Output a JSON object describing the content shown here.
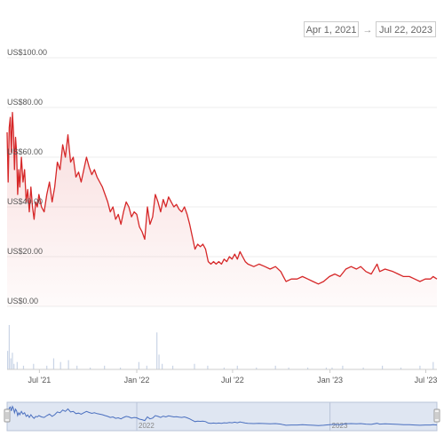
{
  "range_selector": {
    "from": "Apr 1, 2021",
    "arrow": "→",
    "to": "Jul 22, 2023"
  },
  "chart_data": {
    "type": "area",
    "x_start": "2021-05-01",
    "x_end": "2023-07-22",
    "ylim": [
      0,
      100
    ],
    "y_ticks": [
      {
        "value": 100,
        "label": "US$100.00"
      },
      {
        "value": 80,
        "label": "US$80.00"
      },
      {
        "value": 60,
        "label": "US$60.00"
      },
      {
        "value": 40,
        "label": "US$40.00"
      },
      {
        "value": 20,
        "label": "US$20.00"
      },
      {
        "value": 0,
        "label": "US$0.00"
      }
    ],
    "x_ticks": [
      {
        "date": "2021-07-01",
        "label": "Jul '21"
      },
      {
        "date": "2022-01-01",
        "label": "Jan '22"
      },
      {
        "date": "2022-07-01",
        "label": "Jul '22"
      },
      {
        "date": "2023-01-01",
        "label": "Jan '23"
      },
      {
        "date": "2023-07-01",
        "label": "Jul '23"
      }
    ],
    "navigator_ticks": [
      {
        "date": "2022-01-01",
        "label": "2022"
      },
      {
        "date": "2023-01-01",
        "label": "2023"
      }
    ],
    "series": [
      {
        "color": "#d62728",
        "points": [
          [
            "2021-05-01",
            70
          ],
          [
            "2021-05-03",
            50
          ],
          [
            "2021-05-05",
            72
          ],
          [
            "2021-05-07",
            76
          ],
          [
            "2021-05-09",
            62
          ],
          [
            "2021-05-11",
            78
          ],
          [
            "2021-05-13",
            70
          ],
          [
            "2021-05-15",
            55
          ],
          [
            "2021-05-17",
            68
          ],
          [
            "2021-05-19",
            62
          ],
          [
            "2021-05-21",
            45
          ],
          [
            "2021-05-23",
            55
          ],
          [
            "2021-05-25",
            48
          ],
          [
            "2021-05-28",
            60
          ],
          [
            "2021-05-31",
            50
          ],
          [
            "2021-06-03",
            55
          ],
          [
            "2021-06-06",
            42
          ],
          [
            "2021-06-09",
            47
          ],
          [
            "2021-06-12",
            38
          ],
          [
            "2021-06-15",
            48
          ],
          [
            "2021-06-18",
            40
          ],
          [
            "2021-06-21",
            35
          ],
          [
            "2021-06-24",
            42
          ],
          [
            "2021-06-27",
            40
          ],
          [
            "2021-06-30",
            45
          ],
          [
            "2021-07-05",
            40
          ],
          [
            "2021-07-10",
            38
          ],
          [
            "2021-07-15",
            45
          ],
          [
            "2021-07-20",
            50
          ],
          [
            "2021-07-25",
            42
          ],
          [
            "2021-07-30",
            48
          ],
          [
            "2021-08-04",
            58
          ],
          [
            "2021-08-09",
            55
          ],
          [
            "2021-08-14",
            65
          ],
          [
            "2021-08-19",
            60
          ],
          [
            "2021-08-24",
            69
          ],
          [
            "2021-08-29",
            58
          ],
          [
            "2021-09-03",
            60
          ],
          [
            "2021-09-08",
            52
          ],
          [
            "2021-09-13",
            54
          ],
          [
            "2021-09-18",
            50
          ],
          [
            "2021-09-23",
            55
          ],
          [
            "2021-09-28",
            60
          ],
          [
            "2021-10-03",
            56
          ],
          [
            "2021-10-08",
            53
          ],
          [
            "2021-10-13",
            55
          ],
          [
            "2021-10-18",
            52
          ],
          [
            "2021-10-23",
            50
          ],
          [
            "2021-10-28",
            48
          ],
          [
            "2021-11-02",
            45
          ],
          [
            "2021-11-07",
            42
          ],
          [
            "2021-11-12",
            38
          ],
          [
            "2021-11-17",
            40
          ],
          [
            "2021-11-22",
            35
          ],
          [
            "2021-11-27",
            37
          ],
          [
            "2021-12-02",
            33
          ],
          [
            "2021-12-07",
            38
          ],
          [
            "2021-12-12",
            42
          ],
          [
            "2021-12-17",
            40
          ],
          [
            "2021-12-22",
            36
          ],
          [
            "2021-12-27",
            38
          ],
          [
            "2022-01-01",
            37
          ],
          [
            "2022-01-06",
            32
          ],
          [
            "2022-01-11",
            30
          ],
          [
            "2022-01-16",
            27
          ],
          [
            "2022-01-21",
            40
          ],
          [
            "2022-01-26",
            33
          ],
          [
            "2022-01-31",
            36
          ],
          [
            "2022-02-05",
            45
          ],
          [
            "2022-02-10",
            42
          ],
          [
            "2022-02-15",
            38
          ],
          [
            "2022-02-20",
            43
          ],
          [
            "2022-02-25",
            40
          ],
          [
            "2022-03-02",
            44
          ],
          [
            "2022-03-07",
            42
          ],
          [
            "2022-03-12",
            40
          ],
          [
            "2022-03-17",
            41
          ],
          [
            "2022-03-22",
            39
          ],
          [
            "2022-03-27",
            38
          ],
          [
            "2022-04-01",
            40
          ],
          [
            "2022-04-06",
            37
          ],
          [
            "2022-04-11",
            33
          ],
          [
            "2022-04-16",
            28
          ],
          [
            "2022-04-21",
            23
          ],
          [
            "2022-04-26",
            25
          ],
          [
            "2022-05-01",
            24
          ],
          [
            "2022-05-06",
            25
          ],
          [
            "2022-05-11",
            23
          ],
          [
            "2022-05-16",
            18
          ],
          [
            "2022-05-21",
            17
          ],
          [
            "2022-05-26",
            18
          ],
          [
            "2022-05-31",
            17
          ],
          [
            "2022-06-05",
            18
          ],
          [
            "2022-06-10",
            17
          ],
          [
            "2022-06-15",
            19
          ],
          [
            "2022-06-20",
            18
          ],
          [
            "2022-06-25",
            20
          ],
          [
            "2022-06-30",
            19
          ],
          [
            "2022-07-05",
            21
          ],
          [
            "2022-07-10",
            19
          ],
          [
            "2022-07-15",
            22
          ],
          [
            "2022-07-20",
            20
          ],
          [
            "2022-07-25",
            18
          ],
          [
            "2022-07-30",
            17
          ],
          [
            "2022-08-10",
            16
          ],
          [
            "2022-08-20",
            17
          ],
          [
            "2022-08-31",
            16
          ],
          [
            "2022-09-10",
            15
          ],
          [
            "2022-09-20",
            16
          ],
          [
            "2022-09-30",
            14
          ],
          [
            "2022-10-05",
            12
          ],
          [
            "2022-10-10",
            10
          ],
          [
            "2022-10-20",
            11
          ],
          [
            "2022-10-31",
            11
          ],
          [
            "2022-11-10",
            12
          ],
          [
            "2022-11-20",
            11
          ],
          [
            "2022-11-30",
            10
          ],
          [
            "2022-12-10",
            9
          ],
          [
            "2022-12-20",
            10
          ],
          [
            "2022-12-31",
            12
          ],
          [
            "2023-01-10",
            13
          ],
          [
            "2023-01-20",
            12
          ],
          [
            "2023-01-31",
            15
          ],
          [
            "2023-02-10",
            16
          ],
          [
            "2023-02-20",
            15
          ],
          [
            "2023-02-28",
            16
          ],
          [
            "2023-03-10",
            14
          ],
          [
            "2023-03-20",
            13
          ],
          [
            "2023-03-31",
            17
          ],
          [
            "2023-04-05",
            14
          ],
          [
            "2023-04-15",
            15
          ],
          [
            "2023-04-30",
            14
          ],
          [
            "2023-05-10",
            13
          ],
          [
            "2023-05-20",
            12
          ],
          [
            "2023-05-31",
            12
          ],
          [
            "2023-06-10",
            11
          ],
          [
            "2023-06-20",
            10
          ],
          [
            "2023-06-30",
            11
          ],
          [
            "2023-07-05",
            11
          ],
          [
            "2023-07-10",
            11
          ],
          [
            "2023-07-15",
            12
          ],
          [
            "2023-07-22",
            11
          ]
        ]
      }
    ],
    "volume": [
      [
        "2021-05-02",
        10
      ],
      [
        "2021-05-05",
        24
      ],
      [
        "2021-05-08",
        6
      ],
      [
        "2021-05-11",
        9
      ],
      [
        "2021-05-14",
        3
      ],
      [
        "2021-05-20",
        4
      ],
      [
        "2021-06-01",
        2
      ],
      [
        "2021-06-20",
        3
      ],
      [
        "2021-07-15",
        2
      ],
      [
        "2021-07-28",
        6
      ],
      [
        "2021-08-10",
        4
      ],
      [
        "2021-08-25",
        5
      ],
      [
        "2021-09-10",
        2
      ],
      [
        "2021-10-05",
        1
      ],
      [
        "2021-11-01",
        2
      ],
      [
        "2021-12-01",
        1
      ],
      [
        "2022-01-05",
        4
      ],
      [
        "2022-01-20",
        2
      ],
      [
        "2022-02-08",
        20
      ],
      [
        "2022-02-12",
        8
      ],
      [
        "2022-02-18",
        3
      ],
      [
        "2022-03-10",
        2
      ],
      [
        "2022-04-20",
        3
      ],
      [
        "2022-05-15",
        2
      ],
      [
        "2022-06-15",
        1
      ],
      [
        "2022-07-10",
        2
      ],
      [
        "2022-08-15",
        1
      ],
      [
        "2022-09-20",
        2
      ],
      [
        "2022-10-15",
        1
      ],
      [
        "2022-11-20",
        1
      ],
      [
        "2022-12-25",
        1
      ],
      [
        "2023-01-05",
        1
      ],
      [
        "2023-01-25",
        2
      ],
      [
        "2023-03-05",
        1
      ],
      [
        "2023-04-10",
        2
      ],
      [
        "2023-05-15",
        1
      ],
      [
        "2023-06-20",
        2
      ],
      [
        "2023-07-15",
        4
      ]
    ]
  }
}
